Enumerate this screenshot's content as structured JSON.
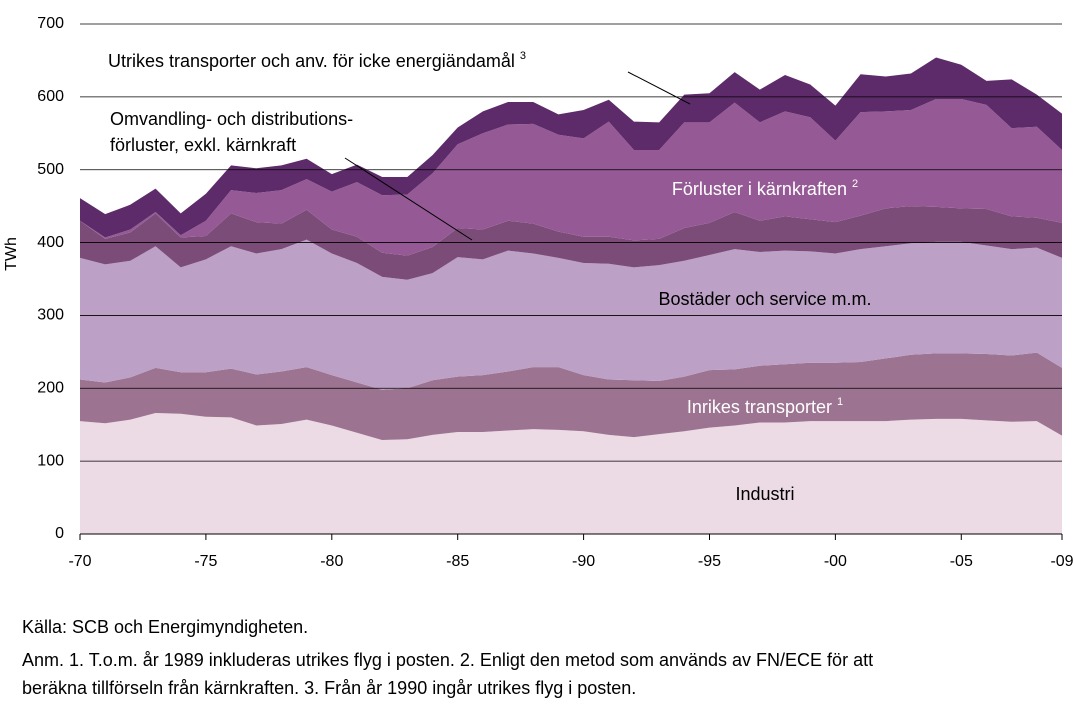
{
  "chart_data": {
    "type": "stacked-area",
    "y_label": "TWh",
    "x": [
      1970,
      1971,
      1972,
      1973,
      1974,
      1975,
      1976,
      1977,
      1978,
      1979,
      1980,
      1981,
      1982,
      1983,
      1984,
      1985,
      1986,
      1987,
      1988,
      1989,
      1990,
      1991,
      1992,
      1993,
      1994,
      1995,
      1996,
      1997,
      1998,
      1999,
      2000,
      2001,
      2002,
      2003,
      2004,
      2005,
      2006,
      2007,
      2008,
      2009
    ],
    "xlim": [
      1970,
      2009
    ],
    "xticks": [
      {
        "value": 1970,
        "label": "-70"
      },
      {
        "value": 1975,
        "label": "-75"
      },
      {
        "value": 1980,
        "label": "-80"
      },
      {
        "value": 1985,
        "label": "-85"
      },
      {
        "value": 1990,
        "label": "-90"
      },
      {
        "value": 1995,
        "label": "-95"
      },
      {
        "value": 2000,
        "label": "-00"
      },
      {
        "value": 2005,
        "label": "-05"
      },
      {
        "value": 2009,
        "label": "-09"
      }
    ],
    "ylim": [
      0,
      700
    ],
    "yticks": [
      0,
      100,
      200,
      300,
      400,
      500,
      600,
      700
    ],
    "grid": true,
    "series": [
      {
        "label_lines": [
          "Industri"
        ],
        "color": "#ecdbe5",
        "text_color": "#000000",
        "values": [
          155,
          152,
          157,
          166,
          165,
          161,
          160,
          149,
          151,
          157,
          149,
          139,
          129,
          130,
          136,
          140,
          140,
          142,
          144,
          143,
          141,
          136,
          133,
          137,
          141,
          146,
          149,
          153,
          153,
          155,
          155,
          155,
          155,
          157,
          158,
          158,
          156,
          154,
          155,
          135
        ]
      },
      {
        "label_lines": [
          "Inrikes transporter"
        ],
        "superscript": "1",
        "color": "#9c7390",
        "text_color": "#ffffff",
        "values": [
          57,
          56,
          58,
          62,
          57,
          61,
          67,
          70,
          72,
          72,
          69,
          69,
          69,
          70,
          75,
          76,
          78,
          81,
          85,
          86,
          77,
          76,
          78,
          73,
          75,
          79,
          77,
          78,
          80,
          80,
          80,
          81,
          86,
          89,
          90,
          90,
          91,
          91,
          94,
          93
        ]
      },
      {
        "label_lines": [
          "Bostäder och service m.m."
        ],
        "color": "#bca0c6",
        "text_color": "#000000",
        "values": [
          167,
          162,
          160,
          167,
          144,
          155,
          168,
          166,
          168,
          175,
          167,
          164,
          155,
          149,
          147,
          164,
          159,
          166,
          156,
          150,
          154,
          159,
          155,
          159,
          159,
          158,
          165,
          156,
          156,
          153,
          150,
          155,
          154,
          153,
          153,
          153,
          149,
          146,
          144,
          151
        ]
      },
      {
        "label_lines": [
          "Omvandling- och distributions-",
          "förluster, exkl. kärnkraft"
        ],
        "color": "#7c4c78",
        "text_color": "#000000",
        "values": [
          51,
          35,
          39,
          45,
          41,
          32,
          45,
          43,
          35,
          41,
          33,
          36,
          33,
          33,
          36,
          40,
          41,
          41,
          41,
          36,
          36,
          37,
          37,
          36,
          45,
          44,
          51,
          43,
          47,
          44,
          43,
          46,
          52,
          51,
          48,
          46,
          50,
          45,
          41,
          48
        ]
      },
      {
        "label_lines": [
          "Förluster i kärnkraften"
        ],
        "superscript": "2",
        "color": "#955a95",
        "text_color": "#ffffff",
        "values": [
          0,
          2,
          4,
          2,
          3,
          21,
          32,
          40,
          46,
          42,
          52,
          75,
          79,
          84,
          101,
          115,
          132,
          132,
          137,
          133,
          135,
          158,
          124,
          122,
          145,
          138,
          150,
          135,
          144,
          140,
          112,
          142,
          133,
          132,
          148,
          150,
          143,
          121,
          125,
          100
        ]
      },
      {
        "label_lines": [
          "Utrikes transporter och anv. för icke energiändamål"
        ],
        "superscript": "3",
        "color": "#5e2b6a",
        "text_color": "#000000",
        "values": [
          31,
          32,
          34,
          32,
          30,
          37,
          34,
          34,
          34,
          28,
          24,
          24,
          25,
          24,
          25,
          23,
          30,
          31,
          30,
          28,
          39,
          30,
          39,
          38,
          38,
          40,
          42,
          45,
          50,
          45,
          48,
          52,
          48,
          50,
          57,
          47,
          33,
          67,
          44,
          50
        ]
      }
    ],
    "source": "Källa: SCB och Energimyndigheten.",
    "notes": [
      "Anm. 1. T.o.m. år 1989 inkluderas utrikes flyg i posten. 2. Enligt den metod som används av FN/ECE för att",
      "beräkna tillförseln från kärnkraften. 3. Från år 1990 ingår utrikes flyg i posten."
    ]
  }
}
